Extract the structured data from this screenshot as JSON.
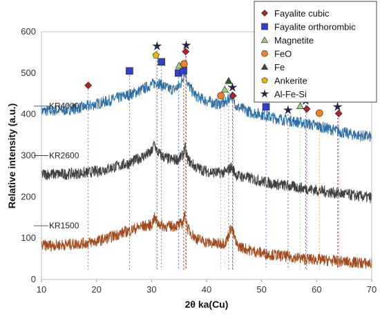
{
  "chart_data": {
    "type": "line",
    "xlabel": "2θ ka(Cu)",
    "ylabel": "Relative intensity (a.u.)",
    "xlim": [
      10,
      70
    ],
    "ylim": [
      0,
      600
    ],
    "xticks": [
      10,
      20,
      30,
      40,
      50,
      60,
      70
    ],
    "yticks": [
      0,
      100,
      200,
      300,
      400,
      500,
      600
    ],
    "grid": false,
    "legend_position": "top-right",
    "series": [
      {
        "name": "KR4000",
        "color": "#2e6fa8",
        "label_y": 420,
        "profile_x": [
          10,
          14,
          18,
          20,
          22,
          24,
          26,
          28,
          30,
          31,
          32,
          33,
          34,
          35,
          35.6,
          36.1,
          36.6,
          38,
          40,
          42,
          43.5,
          44.5,
          45.5,
          48,
          50,
          52,
          55,
          58,
          60,
          63,
          66,
          70
        ],
        "profile_y": [
          408,
          410,
          418,
          425,
          432,
          440,
          448,
          458,
          472,
          478,
          470,
          462,
          460,
          468,
          482,
          508,
          472,
          445,
          432,
          425,
          428,
          448,
          418,
          405,
          400,
          392,
          385,
          378,
          372,
          362,
          352,
          345
        ]
      },
      {
        "name": "KR2600",
        "color": "#404040",
        "label_y": 300,
        "profile_x": [
          10,
          14,
          18,
          20,
          22,
          24,
          26,
          28,
          30,
          30.5,
          31,
          32,
          33,
          34,
          35,
          35.6,
          36.1,
          36.6,
          38,
          40,
          42,
          43.5,
          44.5,
          45.5,
          48,
          50,
          52,
          55,
          58,
          60,
          63,
          66,
          70
        ],
        "profile_y": [
          255,
          255,
          258,
          262,
          268,
          275,
          282,
          295,
          308,
          330,
          310,
          298,
          292,
          290,
          292,
          300,
          318,
          290,
          272,
          262,
          258,
          260,
          272,
          252,
          245,
          238,
          232,
          226,
          220,
          216,
          210,
          205,
          198
        ]
      },
      {
        "name": "KR1500",
        "color": "#a34b1e",
        "label_y": 130,
        "profile_x": [
          10,
          14,
          18,
          20,
          22,
          24,
          26,
          28,
          30,
          30.5,
          31,
          32,
          33,
          34,
          35,
          35.6,
          36.1,
          36.6,
          38,
          40,
          42,
          43.5,
          44.5,
          45.5,
          48,
          50,
          52,
          55,
          58,
          60,
          63,
          66,
          70
        ],
        "profile_y": [
          82,
          84,
          88,
          92,
          100,
          110,
          118,
          128,
          132,
          150,
          138,
          130,
          128,
          130,
          132,
          136,
          155,
          122,
          100,
          90,
          86,
          90,
          128,
          82,
          70,
          64,
          60,
          55,
          50,
          48,
          45,
          42,
          38
        ]
      }
    ],
    "phases": [
      {
        "name": "Fayalite cubic",
        "marker": "diamond",
        "color": "#b22222",
        "markers": [
          {
            "x": 18.5,
            "y": 470
          },
          {
            "x": 36.2,
            "y": 552
          },
          {
            "x": 44.8,
            "y": 445
          },
          {
            "x": 58.2,
            "y": 413
          },
          {
            "x": 64.0,
            "y": 402
          }
        ]
      },
      {
        "name": "Fayalite orthorombic",
        "marker": "square",
        "color": "#2f3fd0",
        "markers": [
          {
            "x": 26.0,
            "y": 505
          },
          {
            "x": 31.8,
            "y": 527
          },
          {
            "x": 34.9,
            "y": 500
          },
          {
            "x": 35.8,
            "y": 506
          },
          {
            "x": 50.8,
            "y": 418
          }
        ]
      },
      {
        "name": "Magnetite",
        "marker": "triangle",
        "color": "#9bd07a",
        "markers": [
          {
            "x": 35.0,
            "y": 518
          },
          {
            "x": 43.3,
            "y": 460
          },
          {
            "x": 57.0,
            "y": 420
          }
        ]
      },
      {
        "name": "FeO",
        "marker": "circle",
        "color": "#f08020",
        "markers": [
          {
            "x": 35.9,
            "y": 522
          },
          {
            "x": 42.6,
            "y": 445
          },
          {
            "x": 60.5,
            "y": 403
          }
        ]
      },
      {
        "name": "Fe",
        "marker": "triangle",
        "color": "#2d5a2d",
        "markers": [
          {
            "x": 44.0,
            "y": 481
          }
        ]
      },
      {
        "name": "Ankerite",
        "marker": "pentagon",
        "color": "#f0b400",
        "markers": [
          {
            "x": 30.8,
            "y": 543
          }
        ]
      },
      {
        "name": "Al-Fe-Si",
        "marker": "star",
        "color": "#2a1f5f",
        "markers": [
          {
            "x": 31.0,
            "y": 565
          },
          {
            "x": 36.3,
            "y": 567
          },
          {
            "x": 44.7,
            "y": 465
          },
          {
            "x": 54.8,
            "y": 410
          },
          {
            "x": 58.0,
            "y": 433
          },
          {
            "x": 63.8,
            "y": 418
          }
        ]
      }
    ]
  }
}
